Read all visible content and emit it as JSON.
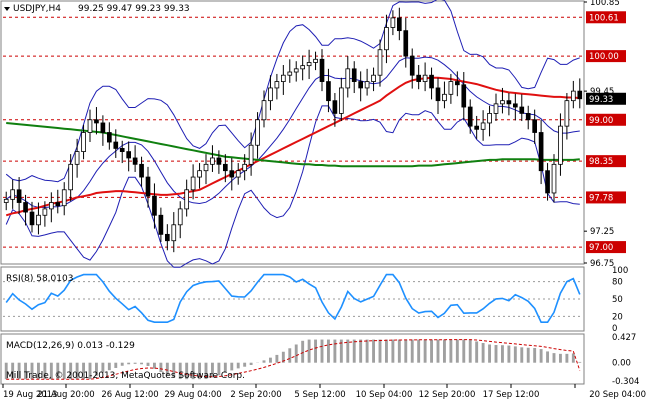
{
  "header": {
    "symbol_line": "USDJPY,H4",
    "ohlc_line": "99.25 99.47 99.23 99.33"
  },
  "panels": {
    "rsi_label": "RSI(8) 58.0103",
    "macd_label": "MACD(12,26,9) 0.013 -0.129",
    "copyright": "Mill Trade, © 2001-2013, MetaQuotes Software Corp."
  },
  "chart_data": {
    "type": "candlestick",
    "symbol": "USDJPY",
    "timeframe": "H4",
    "ylim": [
      96.75,
      100.85
    ],
    "x_tick_labels": [
      "19 Aug 2013",
      "21 Aug 20:00",
      "26 Aug 12:00",
      "29 Aug 04:00",
      "2 Sep 20:00",
      "5 Sep 12:00",
      "10 Sep 04:00",
      "12 Sep 20:00",
      "17 Sep 12:00",
      "20 Sep 04:00"
    ],
    "y_tick_labels": [
      "100.85",
      "100.61",
      "100.00",
      "99.45",
      "99.33",
      "99.00",
      "98.35",
      "97.78",
      "97.25",
      "97.00",
      "96.75"
    ],
    "horizontal_levels": [
      100.61,
      100.0,
      99.0,
      98.35,
      97.78,
      97.0
    ],
    "current_price": 99.33,
    "closes": [
      97.75,
      97.9,
      97.7,
      97.55,
      97.35,
      97.5,
      97.6,
      97.7,
      97.65,
      97.9,
      98.3,
      98.5,
      98.8,
      99.0,
      98.95,
      98.8,
      98.65,
      98.55,
      98.5,
      98.4,
      98.3,
      98.1,
      97.8,
      97.5,
      97.2,
      97.1,
      97.35,
      97.6,
      97.9,
      98.1,
      98.2,
      98.3,
      98.4,
      98.3,
      98.2,
      98.1,
      98.2,
      98.3,
      98.6,
      99.0,
      99.3,
      99.5,
      99.6,
      99.7,
      99.75,
      99.8,
      99.85,
      99.9,
      99.95,
      99.6,
      99.3,
      99.1,
      99.5,
      99.8,
      99.6,
      99.5,
      99.6,
      99.7,
      100.1,
      100.45,
      100.6,
      100.4,
      100.0,
      99.7,
      99.6,
      99.7,
      99.5,
      99.3,
      99.4,
      99.6,
      99.55,
      99.2,
      98.9,
      98.85,
      98.95,
      99.1,
      99.25,
      99.3,
      99.25,
      99.2,
      99.1,
      99.0,
      98.8,
      98.2,
      97.85,
      98.3,
      98.9,
      99.3,
      99.45,
      99.33
    ],
    "series": [
      {
        "name": "MA red",
        "values": [
          97.5,
          97.53,
          97.55,
          97.58,
          97.6,
          97.62,
          97.65,
          97.68,
          97.7,
          97.72,
          97.75,
          97.78,
          97.8,
          97.82,
          97.85,
          97.86,
          97.87,
          97.88,
          97.88,
          97.87,
          97.86,
          97.85,
          97.84,
          97.83,
          97.82,
          97.82,
          97.83,
          97.84,
          97.86,
          97.88,
          97.9,
          97.95,
          98.0,
          98.05,
          98.1,
          98.15,
          98.2,
          98.25,
          98.3,
          98.35,
          98.4,
          98.45,
          98.5,
          98.55,
          98.6,
          98.65,
          98.7,
          98.75,
          98.8,
          98.85,
          98.9,
          98.95,
          99.0,
          99.05,
          99.1,
          99.15,
          99.2,
          99.25,
          99.3,
          99.38,
          99.45,
          99.52,
          99.58,
          99.62,
          99.64,
          99.65,
          99.66,
          99.66,
          99.65,
          99.64,
          99.62,
          99.6,
          99.58,
          99.56,
          99.53,
          99.5,
          99.47,
          99.45,
          99.43,
          99.42,
          99.41,
          99.4,
          99.39,
          99.38,
          99.37,
          99.36,
          99.36,
          99.35,
          99.35,
          99.34
        ]
      },
      {
        "name": "MA green",
        "values": [
          98.95,
          98.94,
          98.93,
          98.92,
          98.91,
          98.9,
          98.89,
          98.88,
          98.87,
          98.86,
          98.85,
          98.84,
          98.83,
          98.82,
          98.81,
          98.8,
          98.78,
          98.76,
          98.74,
          98.72,
          98.7,
          98.68,
          98.66,
          98.64,
          98.62,
          98.6,
          98.58,
          98.56,
          98.54,
          98.52,
          98.5,
          98.48,
          98.46,
          98.44,
          98.42,
          98.41,
          98.4,
          98.39,
          98.38,
          98.37,
          98.36,
          98.35,
          98.34,
          98.33,
          98.32,
          98.31,
          98.3,
          98.3,
          98.29,
          98.29,
          98.28,
          98.28,
          98.27,
          98.27,
          98.27,
          98.27,
          98.27,
          98.27,
          98.27,
          98.27,
          98.27,
          98.27,
          98.27,
          98.27,
          98.28,
          98.28,
          98.28,
          98.29,
          98.3,
          98.31,
          98.32,
          98.33,
          98.34,
          98.35,
          98.36,
          98.37,
          98.37,
          98.38,
          98.38,
          98.38,
          98.38,
          98.38,
          98.38,
          98.37,
          98.37,
          98.37,
          98.37,
          98.37,
          98.37,
          98.38
        ]
      }
    ],
    "rsi": {
      "label": "RSI(8)",
      "value": 58.0103,
      "levels": [
        80,
        50,
        20
      ],
      "axis_labels": [
        "100",
        "80",
        "50",
        "20",
        "0"
      ]
    },
    "macd": {
      "label": "MACD(12,26,9)",
      "main": 0.013,
      "signal": -0.129,
      "axis_labels": [
        "0.427",
        "0.00",
        "-0.304"
      ]
    }
  }
}
